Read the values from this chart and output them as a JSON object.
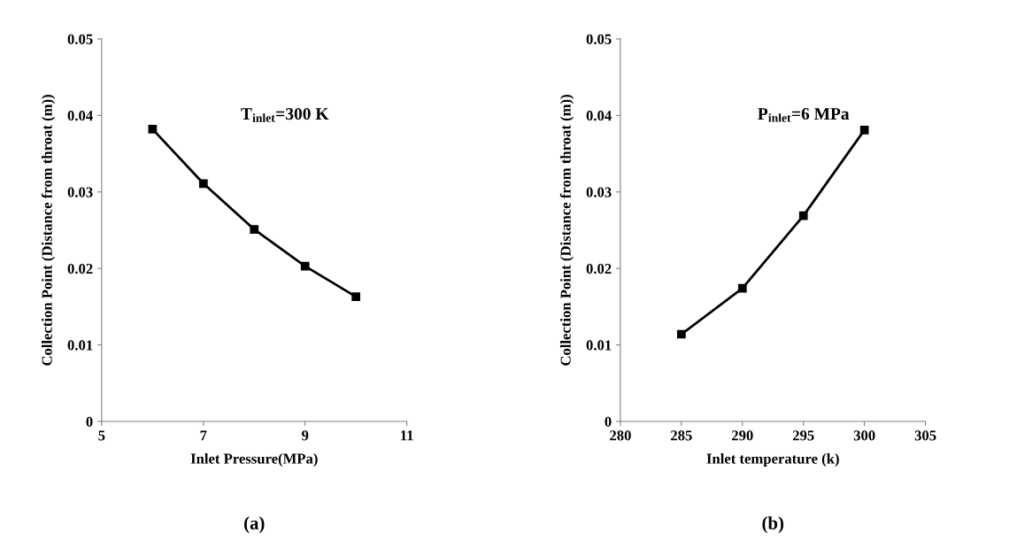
{
  "chart_data": [
    {
      "type": "line",
      "xlabel": "Inlet Pressure(MPa)",
      "ylabel": "Collection Point (Distance from throat (m))",
      "x": [
        6,
        7,
        8,
        9,
        10
      ],
      "series": [
        {
          "color": "#000000",
          "values": [
            0.0382,
            0.0311,
            0.0251,
            0.0203,
            0.0163
          ]
        }
      ],
      "xlim": [
        5,
        11
      ],
      "xticks": [
        5,
        7,
        9,
        11
      ],
      "ylim": [
        0,
        0.05
      ],
      "yticks": [
        {
          "value": 0,
          "label": "0"
        },
        0.01,
        0.02,
        0.03,
        0.04,
        0.05
      ],
      "marker": "square",
      "line_style": "solid",
      "grid": false,
      "legend": false,
      "annotations": [
        "T$_{inlet}$=300 K",
        "(a)"
      ]
    },
    {
      "type": "line",
      "xlabel": "Inlet temperature (k)",
      "ylabel": "Collection Point (Distance from throat (m))",
      "x": [
        285,
        290,
        295,
        300
      ],
      "series": [
        {
          "color": "#000000",
          "values": [
            0.0114,
            0.0174,
            0.0269,
            0.0381
          ]
        }
      ],
      "xlim": [
        280,
        305
      ],
      "xticks": [
        280,
        285,
        290,
        295,
        300,
        305
      ],
      "ylim": [
        0,
        0.05
      ],
      "yticks": [
        {
          "value": 0,
          "label": "0"
        },
        0.01,
        0.02,
        0.03,
        0.04,
        0.05
      ],
      "marker": "square",
      "line_style": "solid",
      "grid": false,
      "legend": false,
      "annotations": [
        "P$_{inlet}$=6 MPa",
        "(b)"
      ]
    }
  ]
}
